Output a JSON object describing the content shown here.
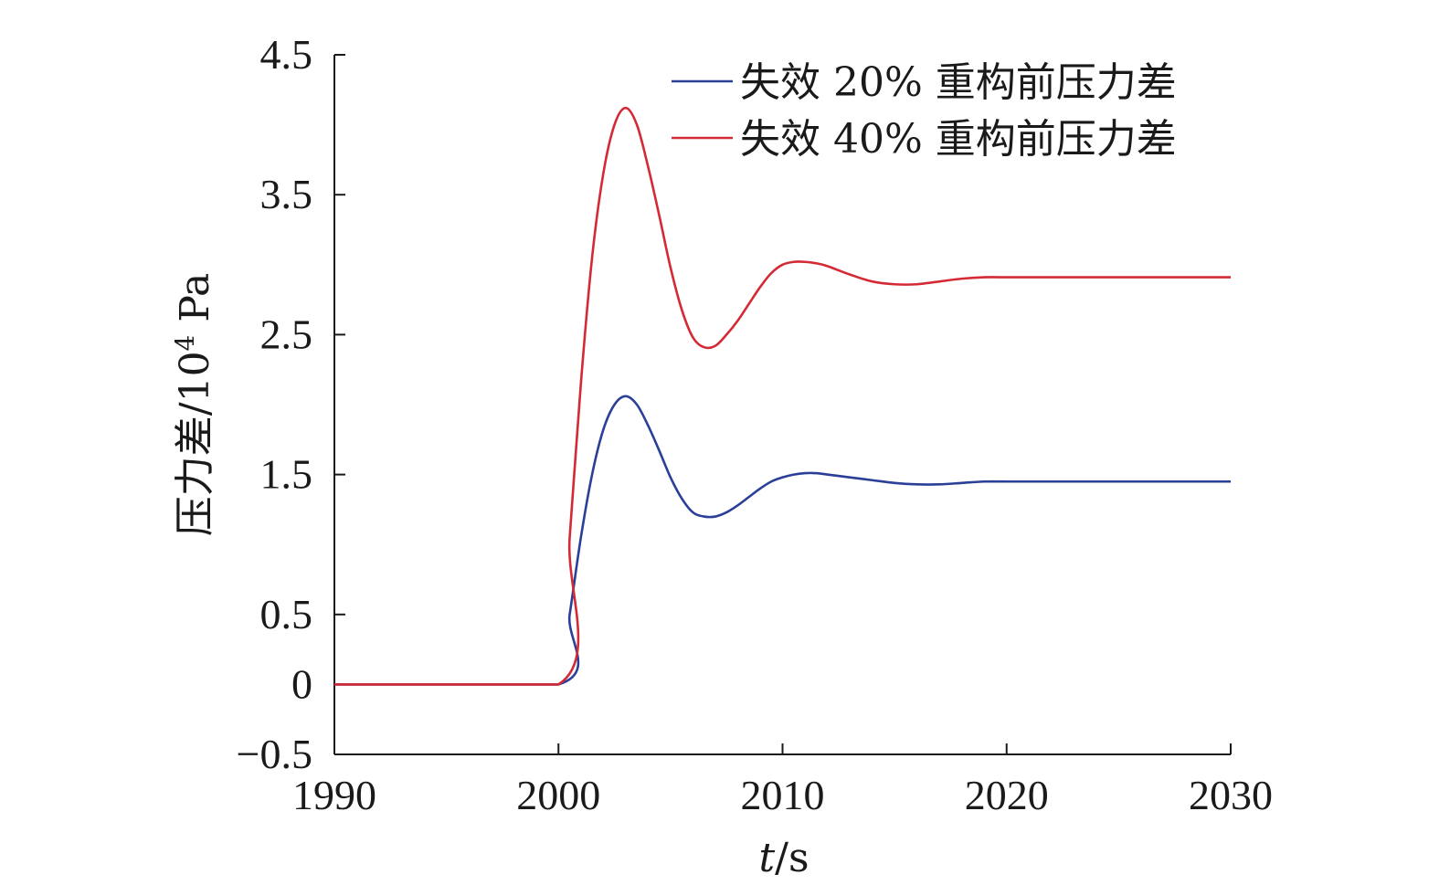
{
  "chart_data": {
    "type": "line",
    "xlabel_italic": "t",
    "xlabel_unit": "/s",
    "ylabel_main": "压力差/10",
    "ylabel_sup": "4",
    "ylabel_unit": " Pa",
    "xlim": [
      1990,
      2030
    ],
    "ylim": [
      -0.5,
      4.5
    ],
    "xticks": [
      1990,
      2000,
      2010,
      2020,
      2030
    ],
    "xtick_labels": [
      "1990",
      "2000",
      "2010",
      "2020",
      "2030"
    ],
    "yticks": [
      -0.5,
      0,
      0.5,
      1.5,
      2.5,
      3.5,
      4.5
    ],
    "ytick_labels": [
      "−0.5",
      "0",
      "0.5",
      "1.5",
      "2.5",
      "3.5",
      "4.5"
    ],
    "legend_position": "top-right",
    "grid": false,
    "series": [
      {
        "name": "失效 20% 重构前压力差",
        "color": "#2a3f98",
        "x": [
          1990,
          2000,
          2000.5,
          2001,
          2001.5,
          2002,
          2002.5,
          2003,
          2003.5,
          2004,
          2004.5,
          2005,
          2005.5,
          2006,
          2006.5,
          2007,
          2007.5,
          2008,
          2008.5,
          2009,
          2009.5,
          2010,
          2010.5,
          2011,
          2011.5,
          2012,
          2013,
          2014,
          2015,
          2016,
          2017,
          2018,
          2019,
          2020,
          2021,
          2022,
          2023,
          2024,
          2025,
          2026,
          2027,
          2028,
          2029,
          2030
        ],
        "y": [
          0,
          0,
          0.5,
          1.05,
          1.5,
          1.82,
          2.0,
          2.06,
          2.0,
          1.85,
          1.67,
          1.48,
          1.33,
          1.23,
          1.2,
          1.2,
          1.23,
          1.28,
          1.34,
          1.4,
          1.45,
          1.48,
          1.5,
          1.51,
          1.51,
          1.5,
          1.48,
          1.46,
          1.44,
          1.43,
          1.43,
          1.44,
          1.45,
          1.45,
          1.45,
          1.45,
          1.45,
          1.45,
          1.45,
          1.45,
          1.45,
          1.45,
          1.45,
          1.45
        ]
      },
      {
        "name": "失效 40% 重构前压力差",
        "color": "#d42a35",
        "x": [
          1990,
          2000,
          2000.5,
          2001,
          2001.5,
          2002,
          2002.5,
          2003,
          2003.5,
          2004,
          2004.5,
          2005,
          2005.5,
          2006,
          2006.5,
          2007,
          2007.5,
          2008,
          2008.5,
          2009,
          2009.5,
          2010,
          2010.5,
          2011,
          2011.5,
          2012,
          2013,
          2014,
          2015,
          2016,
          2017,
          2018,
          2019,
          2020,
          2021,
          2022,
          2023,
          2024,
          2025,
          2026,
          2027,
          2028,
          2029,
          2030
        ],
        "y": [
          0,
          0,
          1.05,
          2.15,
          3.05,
          3.65,
          4.0,
          4.12,
          4.0,
          3.7,
          3.35,
          2.98,
          2.68,
          2.48,
          2.41,
          2.42,
          2.5,
          2.6,
          2.72,
          2.84,
          2.94,
          3.0,
          3.02,
          3.02,
          3.01,
          2.99,
          2.93,
          2.88,
          2.86,
          2.86,
          2.88,
          2.9,
          2.91,
          2.91,
          2.91,
          2.91,
          2.91,
          2.91,
          2.91,
          2.91,
          2.91,
          2.91,
          2.91,
          2.91
        ]
      }
    ]
  }
}
